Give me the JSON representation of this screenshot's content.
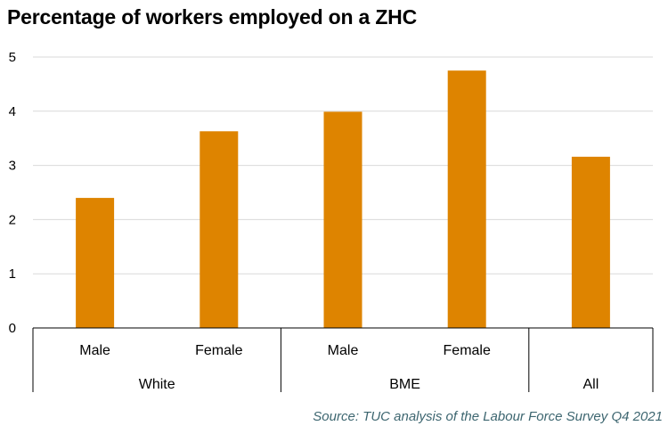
{
  "title": "Percentage of workers employed on a ZHC",
  "source": "Source: TUC analysis of the Labour Force Survey Q4 2021",
  "chart_data": {
    "type": "bar",
    "categories": [
      "Male",
      "Female",
      "Male",
      "Female",
      ""
    ],
    "groups": [
      {
        "label": "White",
        "span": 2
      },
      {
        "label": "BME",
        "span": 2
      },
      {
        "label": "All",
        "span": 1
      }
    ],
    "values": [
      2.4,
      3.63,
      3.99,
      4.75,
      3.16
    ],
    "ylim": [
      0,
      5
    ],
    "yticks": [
      0,
      1,
      2,
      3,
      4,
      5
    ],
    "grid": true,
    "legend": "none",
    "bar_color": "#de8400",
    "grid_color": "#d9d9d9",
    "axis_color": "#000000"
  }
}
